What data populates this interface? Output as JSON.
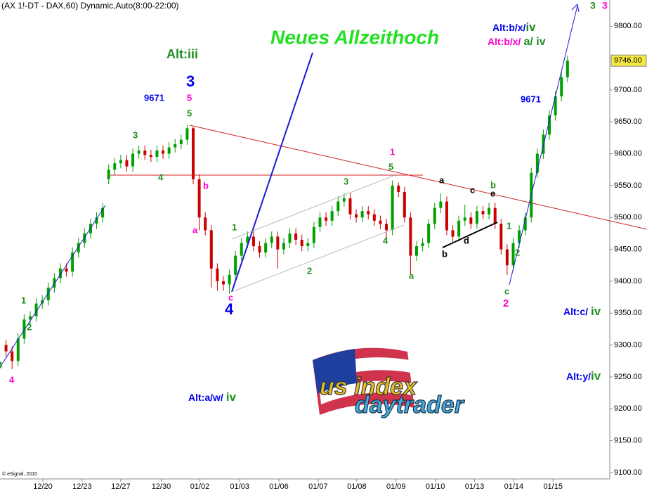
{
  "chart_data": {
    "type": "candlestick",
    "title": "(AX 1!-DT - DAX,60) Dynamic,Auto(8:00-22:00)",
    "up_color": "#00a000",
    "down_color": "#cc0000",
    "xlim": [
      -1,
      100
    ],
    "ylim": [
      9080,
      9840
    ],
    "xticks": [
      {
        "value": 6.1,
        "label": "12/20"
      },
      {
        "value": 12.6,
        "label": "12/23"
      },
      {
        "value": 19,
        "label": "12/27"
      },
      {
        "value": 25.7,
        "label": "12/30"
      },
      {
        "value": 32.1,
        "label": "01/02"
      },
      {
        "value": 38.7,
        "label": "01/03"
      },
      {
        "value": 45.2,
        "label": "01/06"
      },
      {
        "value": 51.7,
        "label": "01/07"
      },
      {
        "value": 58.1,
        "label": "01/08"
      },
      {
        "value": 64.6,
        "label": "01/09"
      },
      {
        "value": 71.1,
        "label": "01/10"
      },
      {
        "value": 77.6,
        "label": "01/13"
      },
      {
        "value": 84.1,
        "label": "01/14"
      },
      {
        "value": 90.6,
        "label": "01/15"
      }
    ],
    "yticks": [
      {
        "value": 9100,
        "label": "9100.00"
      },
      {
        "value": 9150,
        "label": "9150.00"
      },
      {
        "value": 9200,
        "label": "9200.00"
      },
      {
        "value": 9250,
        "label": "9250.00"
      },
      {
        "value": 9300,
        "label": "9300.00"
      },
      {
        "value": 9350,
        "label": "9350.00"
      },
      {
        "value": 9400,
        "label": "9400.00"
      },
      {
        "value": 9450,
        "label": "9450.00"
      },
      {
        "value": 9500,
        "label": "9500.00"
      },
      {
        "value": 9550,
        "label": "9550.00"
      },
      {
        "value": 9600,
        "label": "9600.00"
      },
      {
        "value": 9650,
        "label": "9650.00"
      },
      {
        "value": 9700,
        "label": "9700.00"
      },
      {
        "value": 9750,
        "label": "9750.00"
      },
      {
        "value": 9800,
        "label": "9800.00"
      }
    ],
    "last_price": {
      "value": 9746,
      "label": "9746.00"
    },
    "x": [
      0,
      1,
      2,
      3,
      4,
      5,
      6,
      7,
      8,
      9,
      10,
      11,
      12,
      13,
      14,
      15,
      16,
      17,
      18,
      19,
      20,
      21,
      22,
      23,
      24,
      25,
      26,
      27,
      28,
      29,
      30,
      31,
      32,
      33,
      34,
      35,
      36,
      37,
      38,
      39,
      40,
      41,
      42,
      43,
      44,
      45,
      46,
      47,
      48,
      49,
      50,
      51,
      52,
      53,
      54,
      55,
      56,
      57,
      58,
      59,
      60,
      61,
      62,
      63,
      64,
      65,
      66,
      67,
      68,
      69,
      70,
      71,
      72,
      73,
      74,
      75,
      76,
      77,
      78,
      79,
      80,
      81,
      82,
      83,
      84,
      85,
      86,
      87,
      88,
      89,
      90,
      91,
      92,
      93
    ],
    "open": [
      9300,
      9290,
      9275,
      9310,
      9340,
      9345,
      9365,
      9370,
      9390,
      9405,
      9420,
      9415,
      9445,
      9460,
      9475,
      9490,
      9500,
      9560,
      9575,
      9585,
      9590,
      9580,
      9600,
      9605,
      9598,
      9595,
      9605,
      9600,
      9610,
      9615,
      9622,
      9640,
      9560,
      9500,
      9480,
      9420,
      9400,
      9395,
      9410,
      9440,
      9460,
      9470,
      9455,
      9445,
      9460,
      9470,
      9450,
      9460,
      9475,
      9465,
      9455,
      9460,
      9485,
      9500,
      9495,
      9510,
      9525,
      9530,
      9505,
      9500,
      9510,
      9505,
      9495,
      9490,
      9480,
      9550,
      9540,
      9500,
      9440,
      9455,
      9460,
      9490,
      9515,
      9525,
      9480,
      9470,
      9495,
      9500,
      9490,
      9510,
      9505,
      9515,
      9490,
      9450,
      9425,
      9460,
      9480,
      9500,
      9570,
      9600,
      9630,
      9660,
      9690,
      9720
    ],
    "high": [
      9308,
      9298,
      9318,
      9348,
      9353,
      9373,
      9378,
      9398,
      9413,
      9428,
      9428,
      9453,
      9468,
      9483,
      9498,
      9508,
      9523,
      9583,
      9593,
      9598,
      9598,
      9608,
      9613,
      9613,
      9606,
      9613,
      9613,
      9618,
      9623,
      9630,
      9645,
      9642,
      9568,
      9508,
      9488,
      9428,
      9408,
      9418,
      9448,
      9468,
      9478,
      9478,
      9463,
      9468,
      9478,
      9478,
      9468,
      9483,
      9483,
      9473,
      9468,
      9493,
      9508,
      9508,
      9518,
      9533,
      9538,
      9538,
      9513,
      9518,
      9518,
      9513,
      9503,
      9498,
      9558,
      9555,
      9548,
      9508,
      9463,
      9468,
      9498,
      9523,
      9538,
      9533,
      9488,
      9503,
      9520,
      9508,
      9518,
      9518,
      9523,
      9523,
      9498,
      9458,
      9468,
      9488,
      9508,
      9578,
      9608,
      9638,
      9668,
      9698,
      9728,
      9754
    ],
    "low": [
      9282,
      9262,
      9267,
      9302,
      9332,
      9337,
      9357,
      9362,
      9382,
      9397,
      9407,
      9407,
      9437,
      9452,
      9467,
      9482,
      9492,
      9552,
      9567,
      9577,
      9572,
      9572,
      9592,
      9590,
      9587,
      9587,
      9592,
      9592,
      9602,
      9607,
      9614,
      9552,
      9480,
      9472,
      9390,
      9385,
      9385,
      9380,
      9402,
      9432,
      9452,
      9447,
      9437,
      9437,
      9452,
      9420,
      9442,
      9452,
      9457,
      9447,
      9447,
      9452,
      9477,
      9487,
      9487,
      9502,
      9517,
      9497,
      9492,
      9492,
      9497,
      9487,
      9482,
      9465,
      9472,
      9532,
      9492,
      9410,
      9432,
      9447,
      9452,
      9482,
      9507,
      9472,
      9462,
      9462,
      9487,
      9482,
      9482,
      9497,
      9497,
      9482,
      9442,
      9410,
      9417,
      9452,
      9472,
      9492,
      9562,
      9592,
      9622,
      9652,
      9682,
      9712
    ],
    "close": [
      9290,
      9275,
      9310,
      9340,
      9345,
      9365,
      9370,
      9390,
      9405,
      9420,
      9415,
      9445,
      9460,
      9475,
      9490,
      9500,
      9515,
      9575,
      9585,
      9590,
      9580,
      9600,
      9605,
      9598,
      9595,
      9605,
      9600,
      9610,
      9615,
      9622,
      9640,
      9560,
      9500,
      9480,
      9420,
      9400,
      9395,
      9410,
      9440,
      9460,
      9470,
      9455,
      9445,
      9460,
      9470,
      9450,
      9460,
      9475,
      9465,
      9455,
      9460,
      9485,
      9500,
      9495,
      9510,
      9525,
      9530,
      9505,
      9500,
      9510,
      9505,
      9495,
      9490,
      9480,
      9550,
      9540,
      9500,
      9440,
      9455,
      9460,
      9490,
      9515,
      9525,
      9480,
      9470,
      9495,
      9500,
      9490,
      9510,
      9505,
      9515,
      9490,
      9450,
      9425,
      9460,
      9480,
      9500,
      9570,
      9600,
      9630,
      9660,
      9690,
      9720,
      9746
    ],
    "annotations": [
      {
        "text": "Neues Allzeithoch",
        "color": "#22e022"
      },
      {
        "text": "Alt:iii",
        "color": "#1f8f1f"
      },
      {
        "text": "3",
        "color": "#0000ee"
      },
      {
        "text": "9671",
        "color": "#0000ee"
      },
      {
        "text": "5",
        "color": "#ff00cc"
      },
      {
        "text": "5",
        "color": "#1f8f1f"
      },
      {
        "text": "3",
        "color": "#1f8f1f"
      },
      {
        "text": "4",
        "color": "#1f8f1f"
      },
      {
        "text": "b",
        "color": "#ff00cc"
      },
      {
        "text": "a",
        "color": "#ff00cc"
      },
      {
        "text": "1",
        "color": "#1f8f1f"
      },
      {
        "text": "c",
        "color": "#ff00cc"
      },
      {
        "text": "4",
        "color": "#0000ee"
      },
      {
        "text": "2",
        "color": "#1f8f1f"
      },
      {
        "text": "3",
        "color": "#1f8f1f"
      },
      {
        "text": "4",
        "color": "#1f8f1f"
      },
      {
        "text": "a",
        "color": "#1f8f1f"
      },
      {
        "text": "1",
        "color": "#ff00cc"
      },
      {
        "text": "5",
        "color": "#1f8f1f"
      },
      {
        "text": "a",
        "color": "#000000"
      },
      {
        "text": "b",
        "color": "#000000"
      },
      {
        "text": "d",
        "color": "#000000"
      },
      {
        "text": "c",
        "color": "#000000"
      },
      {
        "text": "b",
        "color": "#1f8f1f"
      },
      {
        "text": "e",
        "color": "#000000"
      },
      {
        "text": "1",
        "color": "#1f8f1f"
      },
      {
        "text": "2",
        "color": "#1f8f1f"
      },
      {
        "text": "c",
        "color": "#1f8f1f"
      },
      {
        "text": "2",
        "color": "#ff00cc"
      },
      {
        "text": "9671",
        "color": "#0000ee"
      },
      {
        "text": "Alt:b/x/",
        "color": "#0000ee"
      },
      {
        "text": "iv",
        "color": "#1f8f1f"
      },
      {
        "text": "Alt:b/x/",
        "color": "#ff00cc"
      },
      {
        "text": "a/ iv",
        "color": "#1f8f1f"
      },
      {
        "text": "3",
        "color": "#1f8f1f"
      },
      {
        "text": "3",
        "color": "#ff00cc"
      },
      {
        "text": "1",
        "color": "#1f8f1f"
      },
      {
        "text": "2",
        "color": "#1f8f1f"
      },
      {
        "text": "4",
        "color": "#ff00cc"
      },
      {
        "text": "4",
        "color": "#1f8f1f"
      },
      {
        "text": "Alt:c/",
        "color": "#0000ee"
      },
      {
        "text": "iv",
        "color": "#1f8f1f"
      },
      {
        "text": "Alt:y/",
        "color": "#0000ee"
      },
      {
        "text": "iv",
        "color": "#1f8f1f"
      },
      {
        "text": "Alt:a/w/",
        "color": "#0000ee"
      },
      {
        "text": "iv",
        "color": "#1f8f1f"
      }
    ],
    "copyright": "© eSignal, 2010",
    "logo": [
      "us index",
      "daytrader"
    ]
  }
}
